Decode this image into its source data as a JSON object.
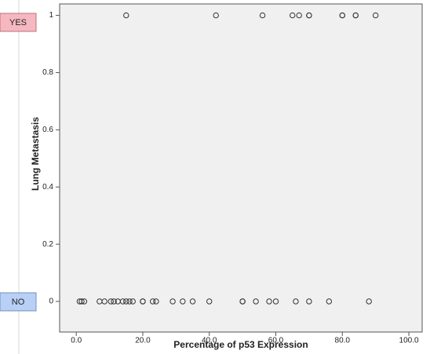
{
  "chart_data": {
    "type": "scatter",
    "x_label": "Percentage of p53 Expression",
    "y_label": "Lung Metastasis",
    "annotations": [
      "YES",
      "NO"
    ],
    "color": "#333333",
    "background": "#f0f0f0",
    "xlim": [
      -5,
      104
    ],
    "ylim": [
      -0.107,
      1.04
    ],
    "xticks": [
      {
        "value": 0,
        "label": "0.0"
      },
      {
        "value": 20,
        "label": "20.0"
      },
      {
        "value": 40,
        "label": "40.0"
      },
      {
        "value": 60,
        "label": "60.0"
      },
      {
        "value": 80,
        "label": "80.0"
      },
      {
        "value": 100,
        "label": "100.0"
      }
    ],
    "yticks": [
      0,
      0.2,
      0.4,
      0.6,
      0.8,
      1
    ],
    "series": [
      {
        "x": [
          15,
          42,
          56,
          65,
          67,
          70,
          70,
          80,
          80,
          84,
          84,
          90,
          1,
          1.6,
          2.4,
          7,
          8.5,
          10.4,
          11.3,
          12.5,
          14,
          15,
          16,
          17,
          20,
          20,
          23,
          24,
          29,
          32,
          35,
          40,
          50,
          50,
          54,
          58,
          60,
          66,
          70,
          76,
          88
        ],
        "values": [
          1,
          1,
          1,
          1,
          1,
          1,
          1,
          1,
          1,
          1,
          1,
          1,
          0,
          0,
          0,
          0,
          0,
          0,
          0,
          0,
          0,
          0,
          0,
          0,
          0,
          0,
          0,
          0,
          0,
          0,
          0,
          0,
          0,
          0,
          0,
          0,
          0,
          0,
          0,
          0,
          0
        ]
      }
    ]
  }
}
